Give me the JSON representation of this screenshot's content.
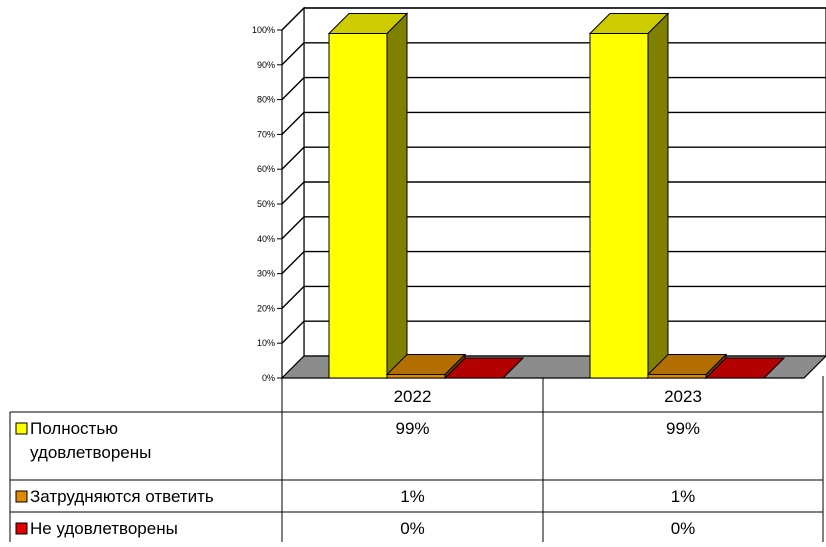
{
  "chart_data": {
    "type": "bar",
    "categories": [
      "2022",
      "2023"
    ],
    "series": [
      {
        "name": "Полностью удовлетворены",
        "name_lines": [
          "Полностью",
          "удовлетворены"
        ],
        "values": [
          99,
          99
        ],
        "labels": [
          "99%",
          "99%"
        ],
        "color": "#FFFF00"
      },
      {
        "name": "Затрудняются ответить",
        "name_lines": [
          "Затрудняются ответить"
        ],
        "values": [
          1,
          1
        ],
        "labels": [
          "1%",
          "1%"
        ],
        "color": "#E08A00"
      },
      {
        "name": "Не удовлетворены",
        "name_lines": [
          "Не удовлетворены"
        ],
        "values": [
          0,
          0
        ],
        "labels": [
          "0%",
          "0%"
        ],
        "color": "#E00000"
      }
    ],
    "y_ticks": [
      "0%",
      "10%",
      "20%",
      "30%",
      "40%",
      "50%",
      "60%",
      "70%",
      "80%",
      "90%",
      "100%"
    ],
    "ylim": [
      0,
      100
    ],
    "grid": true,
    "three_d": true,
    "legend": "data-table",
    "title": "",
    "xlabel": "",
    "ylabel": ""
  }
}
